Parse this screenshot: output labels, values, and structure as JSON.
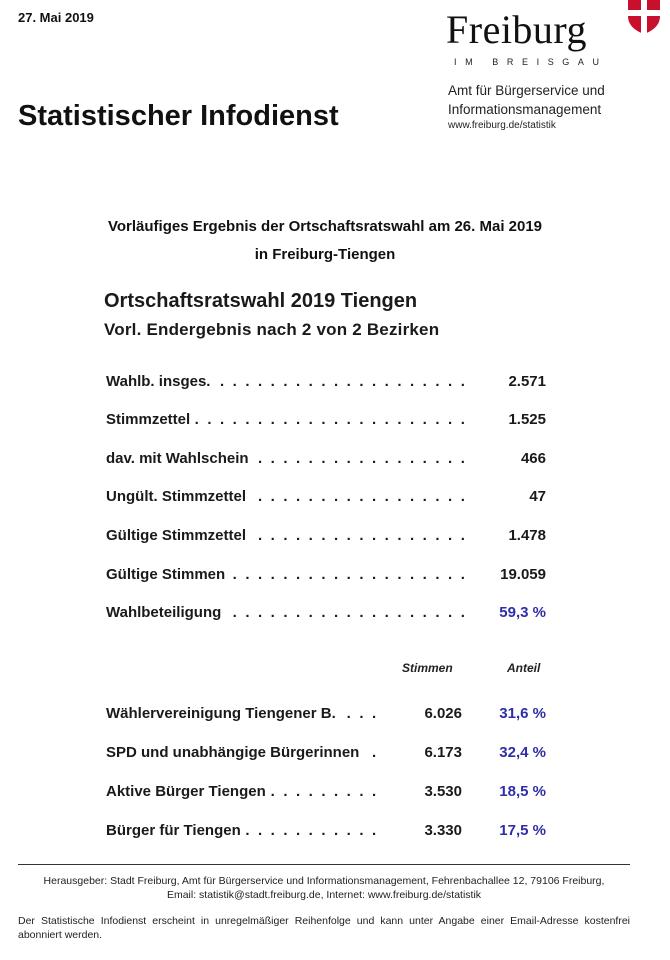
{
  "header": {
    "date": "27. Mai 2019",
    "logo_name": "Freiburg",
    "logo_sub": "IM BREISGAU",
    "title": "Statistischer Infodienst",
    "dept_line1": "Amt für Bürgerservice und",
    "dept_line2": "Informationsmanagement",
    "dept_url": "www.freiburg.de/statistik"
  },
  "headline": {
    "line1": "Vorläufiges Ergebnis der Ortschaftsratswahl am 26. Mai 2019",
    "line2": "in Freiburg-Tiengen"
  },
  "box": {
    "title": "Ortschaftsratswahl 2019 Tiengen",
    "subtitle": "Vorl. Endergebnis nach 2 von 2 Bezirken"
  },
  "stats": [
    {
      "label": "Wahlb. insges.",
      "value": "2.571"
    },
    {
      "label": "Stimmzettel",
      "value": "1.525"
    },
    {
      "label": "dav. mit Wahlschein",
      "value": "466"
    },
    {
      "label": "Ungült. Stimmzettel",
      "value": "47"
    },
    {
      "label": "Gültige Stimmzettel",
      "value": "1.478"
    },
    {
      "label": "Gültige Stimmen",
      "value": "19.059"
    },
    {
      "label": "Wahlbeteiligung",
      "value": "59,3 %"
    }
  ],
  "columns": {
    "votes": "Stimmen",
    "share": "Anteil"
  },
  "parties": [
    {
      "name": "Wählervereinigung Tiengener B.",
      "votes": "6.026",
      "share": "31,6 %"
    },
    {
      "name": "SPD und unabhängige Bürgerinnen",
      "votes": "6.173",
      "share": "32,4 %"
    },
    {
      "name": "Aktive Bürger Tiengen",
      "votes": "3.530",
      "share": "18,5 %"
    },
    {
      "name": "Bürger für Tiengen",
      "votes": "3.330",
      "share": "17,5 %"
    }
  ],
  "footer": {
    "publisher_line1": "Herausgeber: Stadt Freiburg, Amt für Bürgerservice und Informationsmanagement, Fehrenbachallee 12, 79106 Freiburg,",
    "publisher_line2": "Email: statistik@stadt.freiburg.de, Internet: www.freiburg.de/statistik",
    "note": "Der Statistische Infodienst erscheint in unregelmäßiger Reihenfolge und kann unter Angabe einer Email-Adresse kostenfrei abonniert werden."
  },
  "colors": {
    "accent_blue": "#2e2ea8",
    "crest_red": "#c8102e"
  }
}
